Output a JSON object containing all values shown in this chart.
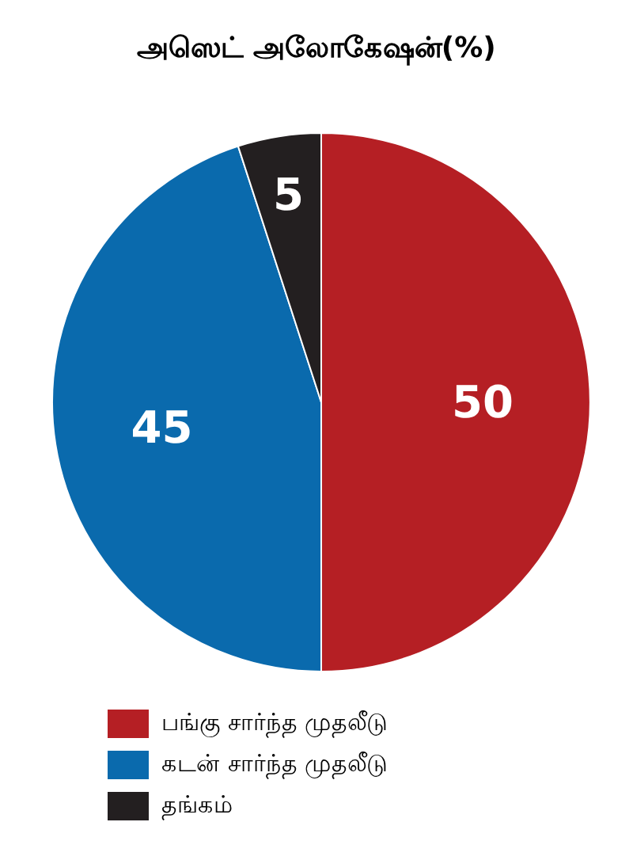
{
  "chart_data": {
    "type": "pie",
    "title": "அஸெட் அலோகேஷன்(%)",
    "categories": [
      "பங்கு சார்ந்த முதலீடு",
      "கடன் சார்ந்த முதலீடு",
      "தங்கம்"
    ],
    "values": [
      50,
      45,
      5
    ],
    "colors": [
      "#b51f24",
      "#0a6aad",
      "#231f20"
    ],
    "data_labels": true,
    "legend": "bottom"
  }
}
